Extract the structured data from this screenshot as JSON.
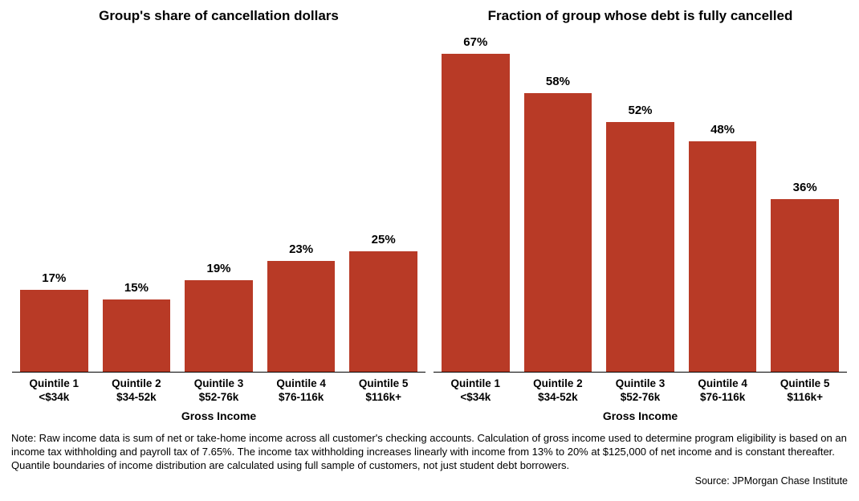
{
  "global": {
    "ymax_percent": 70,
    "bar_color": "#b83a26",
    "background_color": "#ffffff",
    "title_fontsize": 17,
    "bar_label_fontsize": 15,
    "xtick_fontsize": 13.5,
    "xlabel_fontsize": 14,
    "note_fontsize": 13,
    "source_fontsize": 12.5,
    "axis_line_color": "#000000",
    "text_color": "#000000"
  },
  "left_chart": {
    "type": "bar",
    "title": "Group's share of cancellation dollars",
    "xlabel": "Gross Income",
    "categories": [
      {
        "line1": "Quintile 1",
        "line2": "<$34k"
      },
      {
        "line1": "Quintile 2",
        "line2": "$34-52k"
      },
      {
        "line1": "Quintile 3",
        "line2": "$52-76k"
      },
      {
        "line1": "Quintile 4",
        "line2": "$76-116k"
      },
      {
        "line1": "Quintile 5",
        "line2": "$116k+"
      }
    ],
    "values": [
      17,
      15,
      19,
      23,
      25
    ],
    "value_labels": [
      "17%",
      "15%",
      "19%",
      "23%",
      "25%"
    ]
  },
  "right_chart": {
    "type": "bar",
    "title": "Fraction of group whose debt is fully cancelled",
    "xlabel": "Gross Income",
    "categories": [
      {
        "line1": "Quintile 1",
        "line2": "<$34k"
      },
      {
        "line1": "Quintile 2",
        "line2": "$34-52k"
      },
      {
        "line1": "Quintile 3",
        "line2": "$52-76k"
      },
      {
        "line1": "Quintile 4",
        "line2": "$76-116k"
      },
      {
        "line1": "Quintile 5",
        "line2": "$116k+"
      }
    ],
    "values": [
      67,
      58,
      52,
      48,
      36
    ],
    "value_labels": [
      "67%",
      "58%",
      "52%",
      "48%",
      "36%"
    ]
  },
  "note_text": "Note:  Raw income data is sum of net or take-home income across all customer's checking accounts. Calculation of gross income used to determine program eligibility is based on an income tax withholding and payroll tax of 7.65%. The income tax withholding increases linearly with income from 13%  to 20% at $125,000 of net income and is constant thereafter. Quantile boundaries of income distribution are calculated using full sample of customers, not just student debt borrowers.",
  "source_text": "Source: JPMorgan Chase Institute"
}
